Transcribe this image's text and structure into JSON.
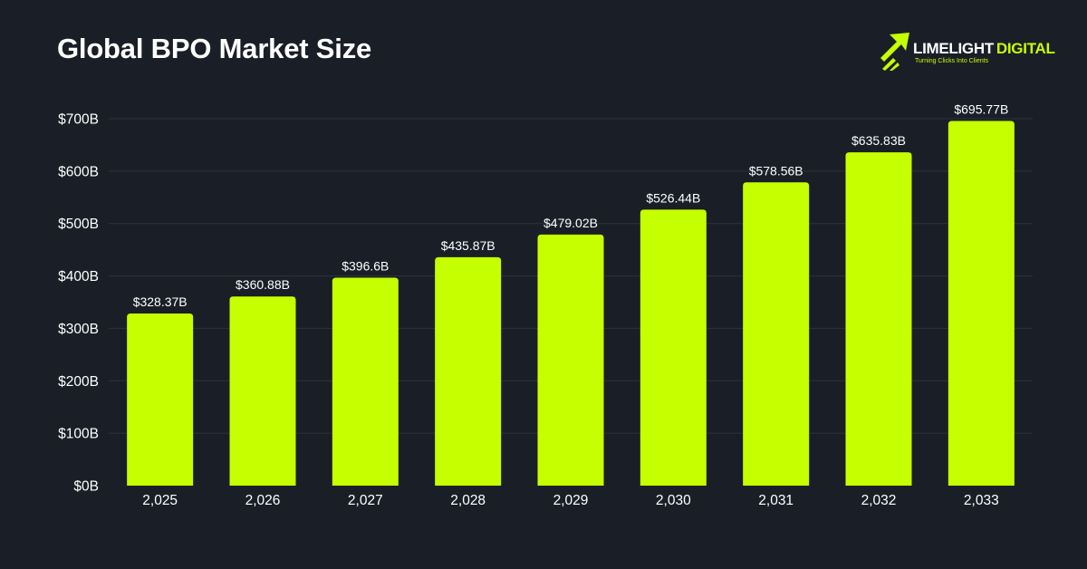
{
  "header": {
    "title": "Global BPO Market Size"
  },
  "logo": {
    "word_a": "LIMELIGHT",
    "word_b": "DIGITAL",
    "tagline": "Turning Clicks Into Clients",
    "icon": "rocket-arrows-icon"
  },
  "colors": {
    "background": "#1a1f27",
    "bar": "#c6ff00",
    "grid": "#2c323c",
    "text": "#ffffff"
  },
  "chart_data": {
    "type": "bar",
    "title": "Global BPO Market Size",
    "xlabel": "",
    "ylabel": "",
    "categories": [
      "2,025",
      "2,026",
      "2,027",
      "2,028",
      "2,029",
      "2,030",
      "2,031",
      "2,032",
      "2,033"
    ],
    "values": [
      328.37,
      360.88,
      396.6,
      435.87,
      479.02,
      526.44,
      578.56,
      635.83,
      695.77
    ],
    "value_labels": [
      "$328.37B",
      "$360.88B",
      "$396.6B",
      "$435.87B",
      "$479.02B",
      "$526.44B",
      "$578.56B",
      "$635.83B",
      "$695.77B"
    ],
    "y_ticks": [
      0,
      100,
      200,
      300,
      400,
      500,
      600,
      700
    ],
    "y_tick_labels": [
      "$0B",
      "$100B",
      "$200B",
      "$300B",
      "$400B",
      "$500B",
      "$600B",
      "$700B"
    ],
    "ylim": [
      0,
      700
    ],
    "grid": true,
    "legend": "none"
  }
}
